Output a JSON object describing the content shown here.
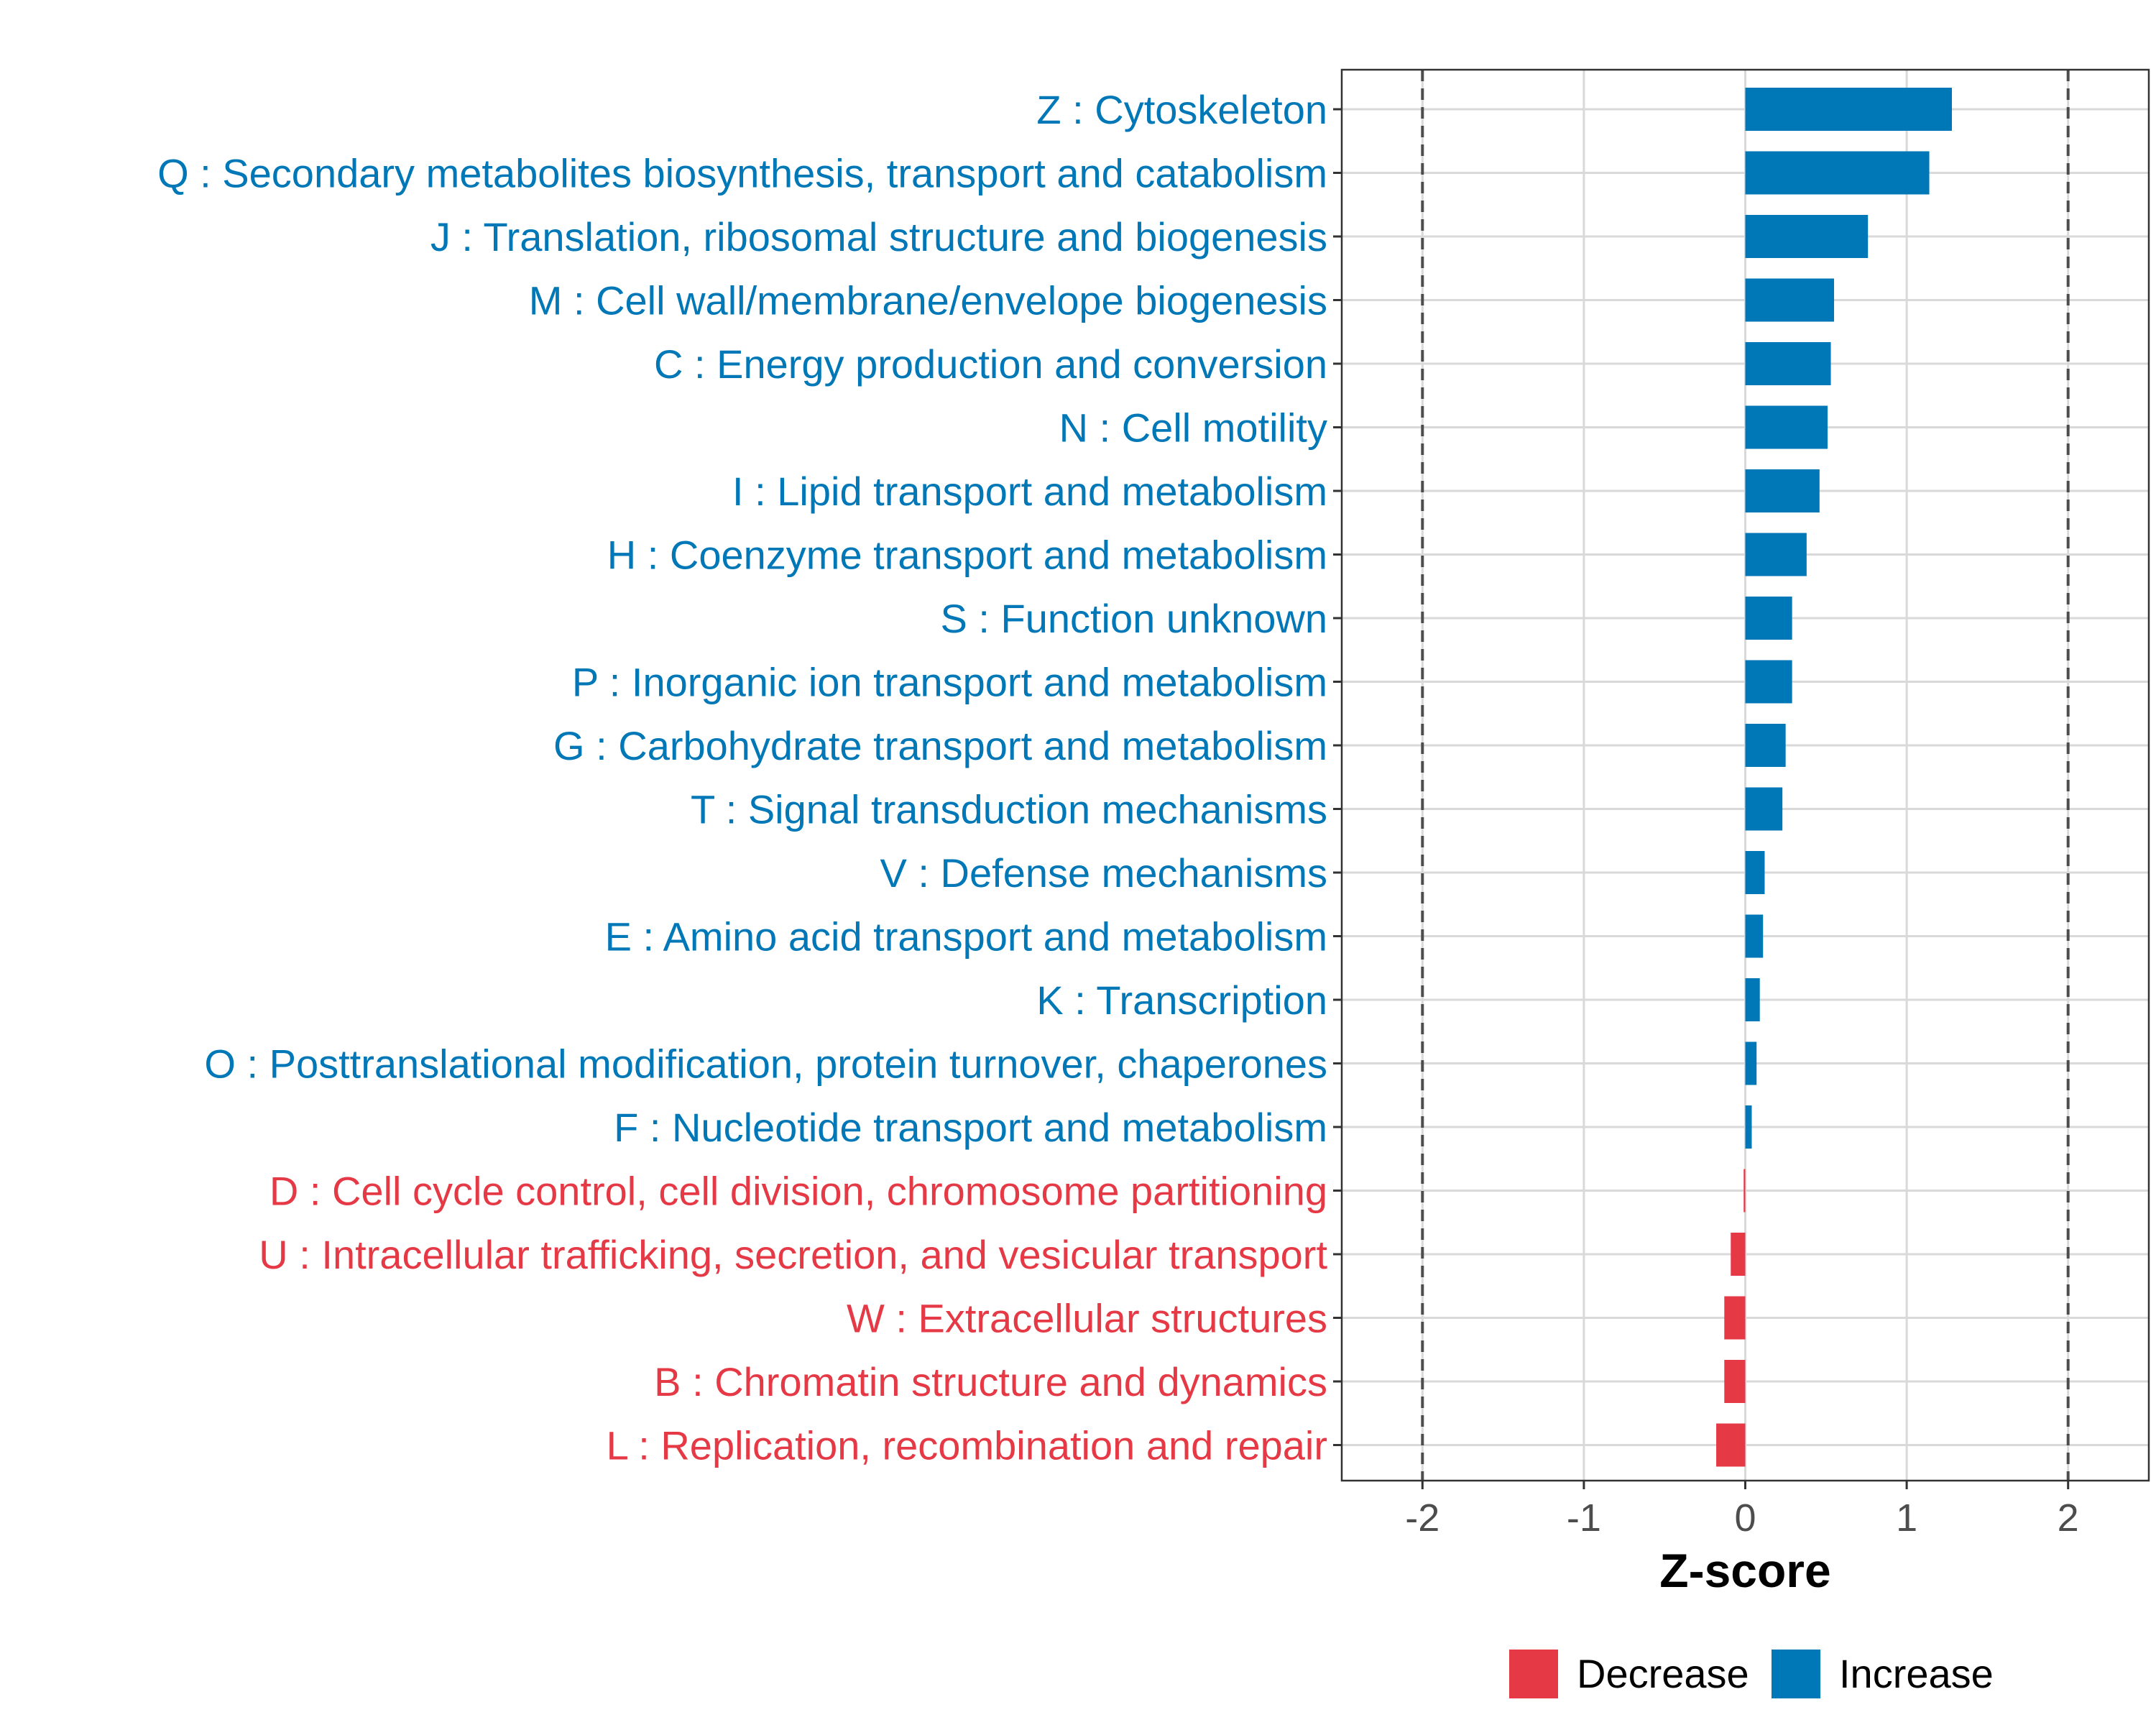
{
  "chart_data": {
    "type": "bar",
    "orientation": "horizontal",
    "xlabel": "Z-score",
    "xlim": [
      -2.5,
      2.5
    ],
    "xticks": [
      -2,
      -1,
      0,
      1,
      2
    ],
    "xtick_labels": [
      "-2",
      "-1",
      "0",
      "1",
      "2"
    ],
    "reference_lines": [
      -2,
      2
    ],
    "grid": true,
    "legend_position": "bottom",
    "legend": [
      {
        "label": "Decrease",
        "color": "#e63946"
      },
      {
        "label": "Increase",
        "color": "#0077b6"
      }
    ],
    "categories": [
      "Z : Cytoskeleton",
      "Q : Secondary metabolites biosynthesis, transport and catabolism",
      "J : Translation, ribosomal structure and biogenesis",
      "M : Cell wall/membrane/envelope biogenesis",
      "C : Energy production and conversion",
      "N : Cell motility",
      "I : Lipid transport and metabolism",
      "H : Coenzyme transport and metabolism",
      "S : Function unknown",
      "P : Inorganic ion transport and metabolism",
      "G : Carbohydrate transport and metabolism",
      "T : Signal transduction mechanisms",
      "V : Defense mechanisms",
      "E : Amino acid transport and metabolism",
      "K : Transcription",
      "O : Posttranslational modification, protein turnover, chaperones",
      "F : Nucleotide transport and metabolism",
      "D : Cell cycle control, cell division, chromosome partitioning",
      "U : Intracellular trafficking, secretion, and vesicular transport",
      "W : Extracellular structures",
      "B : Chromatin structure and dynamics",
      "L : Replication, recombination and repair"
    ],
    "values": [
      1.28,
      1.14,
      0.76,
      0.55,
      0.53,
      0.51,
      0.46,
      0.38,
      0.29,
      0.29,
      0.25,
      0.23,
      0.12,
      0.11,
      0.09,
      0.07,
      0.04,
      -0.01,
      -0.09,
      -0.13,
      -0.13,
      -0.18
    ],
    "direction": [
      "Increase",
      "Increase",
      "Increase",
      "Increase",
      "Increase",
      "Increase",
      "Increase",
      "Increase",
      "Increase",
      "Increase",
      "Increase",
      "Increase",
      "Increase",
      "Increase",
      "Increase",
      "Increase",
      "Increase",
      "Decrease",
      "Decrease",
      "Decrease",
      "Decrease",
      "Decrease"
    ]
  }
}
